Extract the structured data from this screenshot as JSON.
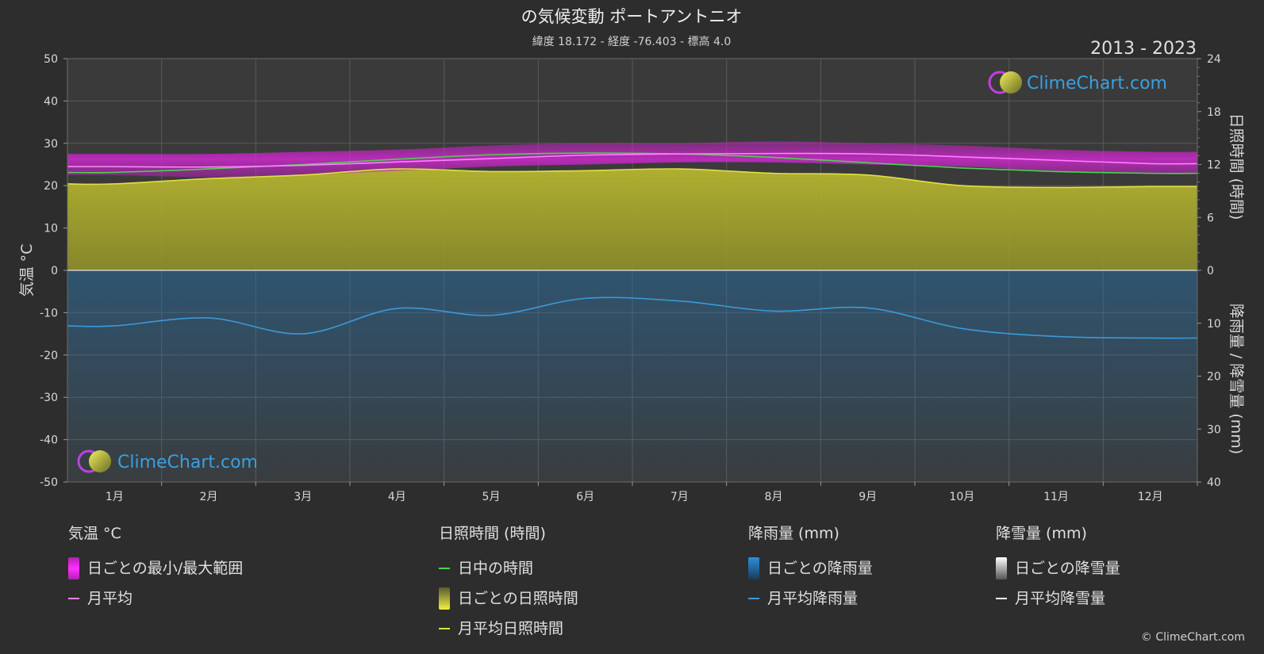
{
  "header": {
    "title": "の気候変動 ポートアントニオ",
    "subtitle": "緯度 18.172 - 経度 -76.403 - 標高 4.0",
    "year_range": "2013 - 2023"
  },
  "brand": {
    "name": "ClimeChart.com",
    "copyright": "© ClimeChart.com"
  },
  "chart_data": {
    "type": "area",
    "categories": [
      "1月",
      "2月",
      "3月",
      "4月",
      "5月",
      "6月",
      "7月",
      "8月",
      "9月",
      "10月",
      "11月",
      "12月"
    ],
    "left_axis": {
      "label": "気温 °C",
      "range": [
        -50,
        50
      ],
      "ticks": [
        50,
        40,
        30,
        20,
        10,
        0,
        -10,
        -20,
        -30,
        -40,
        -50
      ]
    },
    "right_axis_top": {
      "label": "日照時間 (時間)",
      "range": [
        0,
        24
      ],
      "ticks": [
        24,
        18,
        12,
        6,
        0
      ]
    },
    "right_axis_bottom": {
      "label": "降雨量 / 降雪量 (mm)",
      "range": [
        0,
        40
      ],
      "ticks": [
        0,
        10,
        20,
        30,
        40
      ]
    },
    "series": [
      {
        "name": "日中の時間",
        "axis": "sun",
        "color": "#4cd24c",
        "values": [
          11.1,
          11.5,
          12.0,
          12.6,
          13.1,
          13.3,
          13.2,
          12.8,
          12.2,
          11.6,
          11.2,
          11.0
        ]
      },
      {
        "name": "月平均",
        "axis": "temp",
        "color": "#ff80ff",
        "values": [
          24.5,
          24.4,
          24.8,
          25.6,
          26.4,
          27.2,
          27.5,
          27.6,
          27.5,
          26.8,
          26.0,
          25.2
        ]
      },
      {
        "name": "月平均日照時間",
        "axis": "sun",
        "color": "#e0e040",
        "values": [
          9.8,
          10.4,
          10.8,
          11.5,
          11.2,
          11.3,
          11.5,
          11.0,
          10.8,
          9.6,
          9.4,
          9.5
        ]
      },
      {
        "name": "月平均降雨量",
        "axis": "rain",
        "color": "#3a9ad9",
        "values": [
          10.5,
          9.0,
          12.0,
          7.2,
          8.5,
          5.3,
          5.8,
          7.7,
          7.1,
          11.0,
          12.5,
          12.8
        ]
      },
      {
        "name": "日ごとの最小/最大範囲",
        "axis": "temp",
        "color": "#e020e0",
        "min": [
          22.5,
          22.0,
          22.5,
          23.5,
          24.5,
          25.0,
          25.5,
          25.5,
          25.0,
          24.5,
          23.5,
          23.0
        ],
        "max": [
          27.5,
          27.5,
          28.0,
          28.5,
          29.5,
          30.0,
          30.0,
          30.5,
          30.0,
          29.5,
          28.5,
          28.0
        ]
      }
    ],
    "grid": true
  },
  "legend": {
    "temp": {
      "header": "気温 °C",
      "items": [
        "日ごとの最小/最大範囲",
        "月平均"
      ]
    },
    "sun": {
      "header": "日照時間 (時間)",
      "items": [
        "日中の時間",
        "日ごとの日照時間",
        "月平均日照時間"
      ]
    },
    "rain": {
      "header": "降雨量 (mm)",
      "items": [
        "日ごとの降雨量",
        "月平均降雨量"
      ]
    },
    "snow": {
      "header": "降雪量 (mm)",
      "items": [
        "日ごとの降雪量",
        "月平均降雪量"
      ]
    }
  },
  "colors": {
    "background": "#2d2d2d",
    "plot_bg": "#3a3a3a",
    "grid": "#5a5a5a",
    "sun_fill": "#a8a82e",
    "rain_fill": "#1f5f8e",
    "snow": "#ffffff",
    "brand_blue": "#3aa0e0"
  }
}
